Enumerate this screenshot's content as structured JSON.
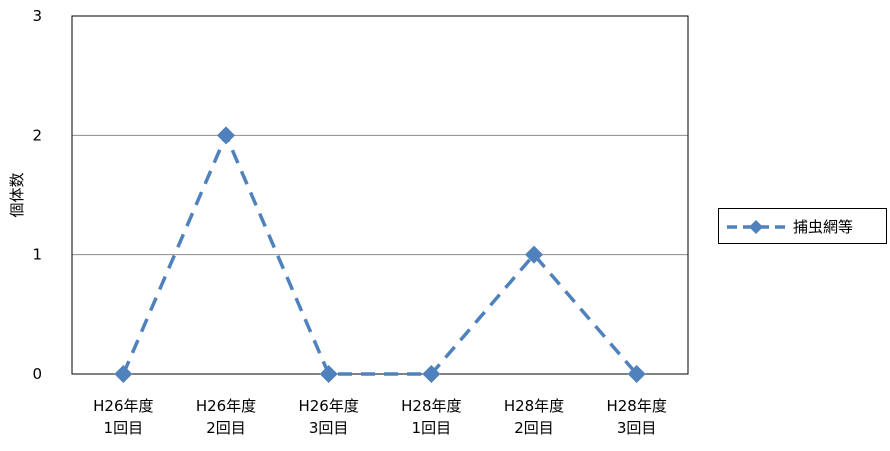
{
  "chart_data": {
    "type": "line",
    "categories": [
      [
        "H26年度",
        "1回目"
      ],
      [
        "H26年度",
        "2回目"
      ],
      [
        "H26年度",
        "3回目"
      ],
      [
        "H28年度",
        "1回目"
      ],
      [
        "H28年度",
        "2回目"
      ],
      [
        "H28年度",
        "3回目"
      ]
    ],
    "series": [
      {
        "name": "捕虫網等",
        "values": [
          0,
          2,
          0,
          0,
          1,
          0
        ],
        "color": "#4F81BD",
        "line_style": "dashed",
        "marker": "diamond"
      }
    ],
    "ylabel": "個体数",
    "ylim": [
      0,
      3
    ],
    "yticks": [
      "0",
      "1",
      "2",
      "3"
    ],
    "grid": true,
    "legend": "right"
  }
}
